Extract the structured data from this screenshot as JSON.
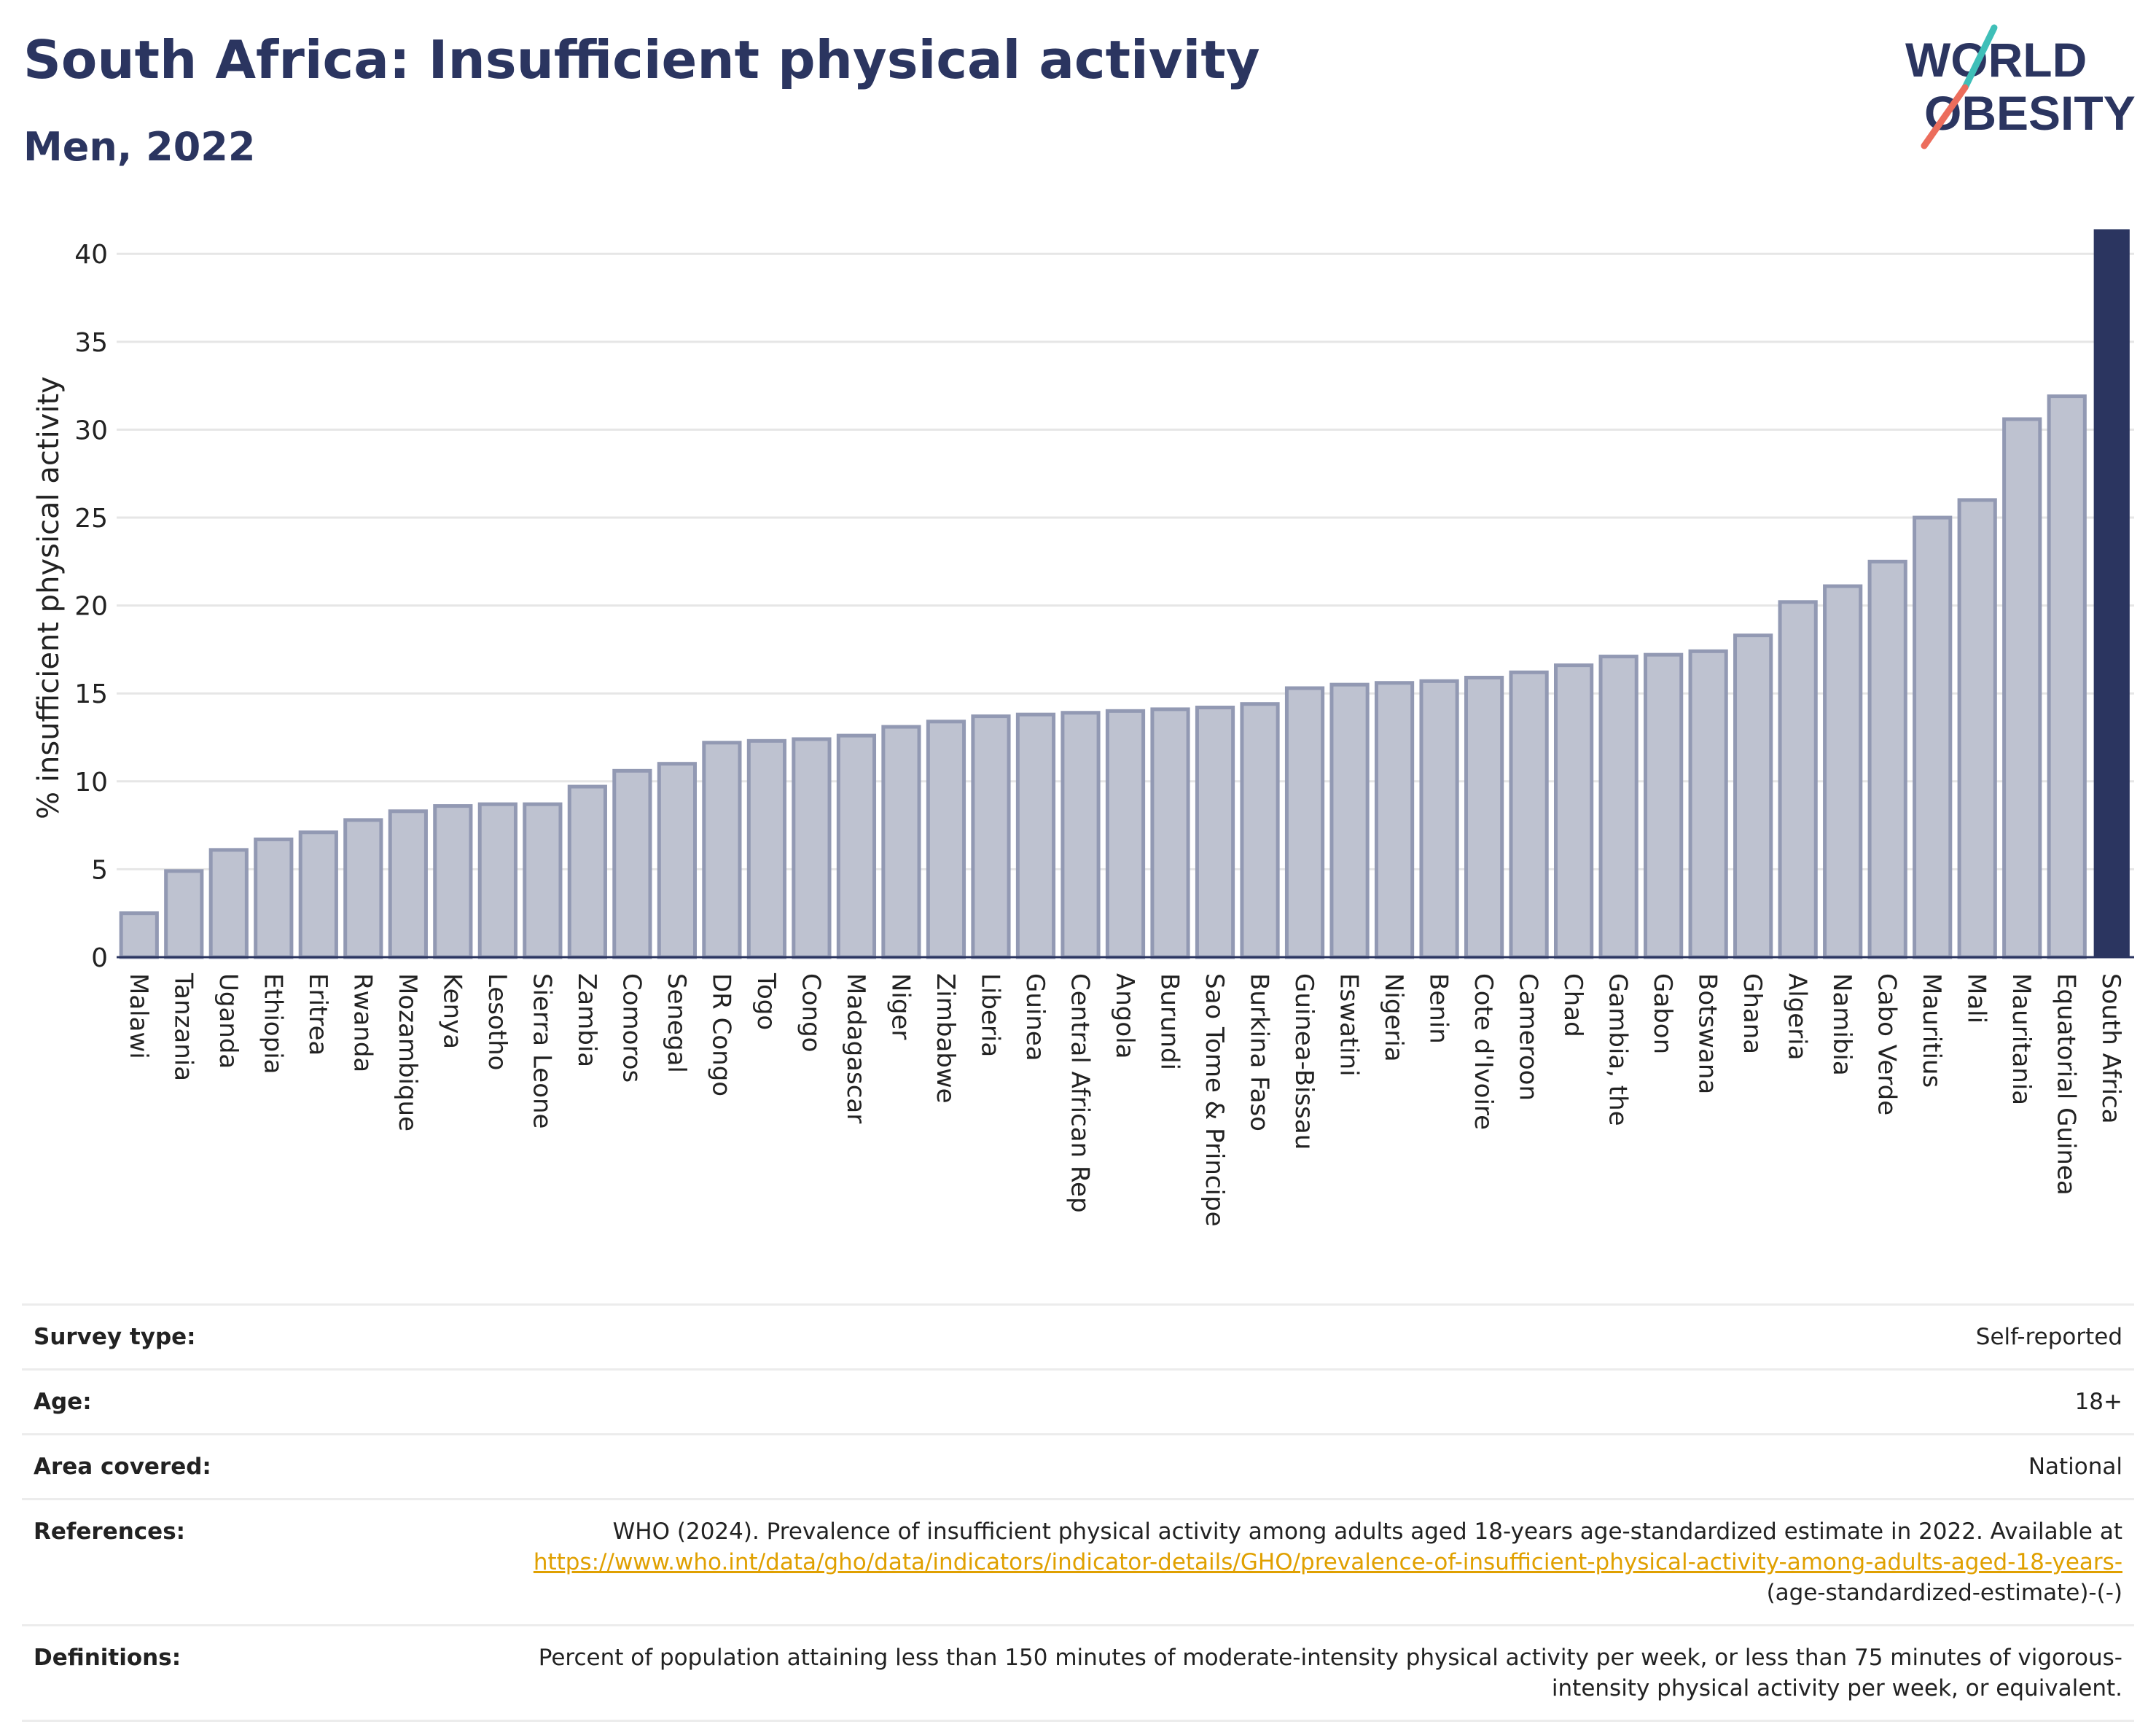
{
  "header": {
    "title": "South Africa: Insufficient physical activity",
    "subtitle": "Men, 2022"
  },
  "logo": {
    "line1": "WORLD",
    "line2": "OBESITY"
  },
  "chart_data": {
    "type": "bar",
    "ylabel": "% insufficient physical activity",
    "xlabel": "",
    "ylim": [
      0,
      42
    ],
    "yticks": [
      0,
      5,
      10,
      15,
      20,
      25,
      30,
      35,
      40
    ],
    "grid": true,
    "categories": [
      "Malawi",
      "Tanzania",
      "Uganda",
      "Ethiopia",
      "Eritrea",
      "Rwanda",
      "Mozambique",
      "Kenya",
      "Lesotho",
      "Sierra Leone",
      "Zambia",
      "Comoros",
      "Senegal",
      "DR Congo",
      "Togo",
      "Congo",
      "Madagascar",
      "Niger",
      "Zimbabwe",
      "Liberia",
      "Guinea",
      "Central African Rep",
      "Angola",
      "Burundi",
      "Sao Tome & Principe",
      "Burkina Faso",
      "Guinea-Bissau",
      "Eswatini",
      "Nigeria",
      "Benin",
      "Cote d'Ivoire",
      "Cameroon",
      "Chad",
      "Gambia, the",
      "Gabon",
      "Botswana",
      "Ghana",
      "Algeria",
      "Namibia",
      "Cabo Verde",
      "Mauritius",
      "Mali",
      "Mauritania",
      "Equatorial Guinea",
      "South Africa"
    ],
    "values": [
      2.5,
      4.9,
      6.1,
      6.7,
      7.1,
      7.8,
      8.3,
      8.6,
      8.7,
      8.7,
      9.7,
      10.6,
      11.0,
      12.2,
      12.3,
      12.4,
      12.6,
      13.1,
      13.4,
      13.7,
      13.8,
      13.9,
      14.0,
      14.1,
      14.2,
      14.4,
      15.3,
      15.5,
      15.6,
      15.7,
      15.9,
      16.2,
      16.6,
      17.1,
      17.2,
      17.4,
      18.3,
      20.2,
      21.1,
      22.5,
      25.0,
      26.0,
      30.6,
      31.9,
      41.4
    ],
    "highlight": "South Africa",
    "colors": {
      "bar": "#bec2d0",
      "bar_stroke": "#9299b3",
      "highlight": "#2b3560",
      "grid": "#e6e6e6",
      "axis": "#2b3560"
    }
  },
  "info": {
    "survey_label": "Survey type:",
    "survey_value": "Self-reported",
    "age_label": "Age:",
    "age_value": "18+",
    "area_label": "Area covered:",
    "area_value": "National",
    "references_label": "References:",
    "references_text": "WHO (2024). Prevalence of insufficient physical activity among adults aged 18-years age-standardized estimate in 2022. Available at",
    "references_link": "https://www.who.int/data/gho/data/indicators/indicator-details/GHO/prevalence-of-insufficient-physical-activity-among-adults-aged-18-years-",
    "references_suffix": "(age-standardized-estimate)-(-)",
    "definitions_label": "Definitions:",
    "definitions_text": "Percent of population attaining less than 150 minutes of moderate-intensity physical activity per week, or less than 75 minutes of vigorous-intensity physical activity per week, or equivalent."
  }
}
